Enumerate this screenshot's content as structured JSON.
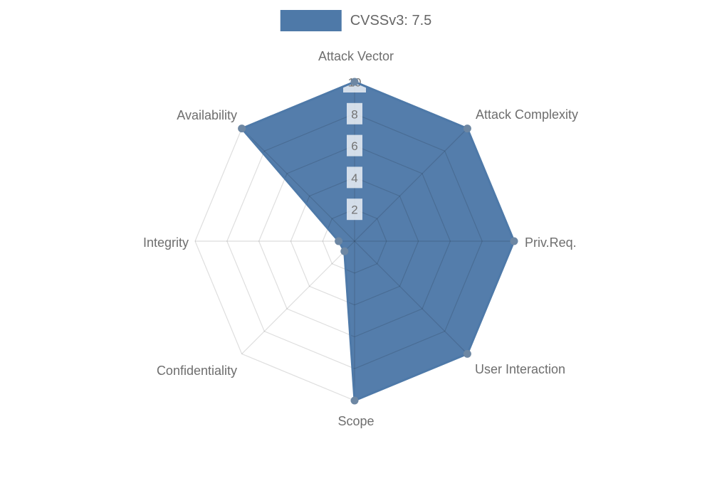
{
  "legend": {
    "label": "CVSSv3: 7.5",
    "swatch_color": "#4e79a8"
  },
  "chart_data": {
    "type": "radar",
    "categories": [
      "Attack Vector",
      "Attack Complexity",
      "Priv.Req.",
      "User Interaction",
      "Scope",
      "Confidentiality",
      "Integrity",
      "Availability"
    ],
    "series": [
      {
        "name": "CVSSv3: 7.5",
        "values": [
          10,
          10,
          10,
          10,
          10,
          0.9,
          1.0,
          10
        ]
      }
    ],
    "rlim": [
      0,
      10
    ],
    "ticks": [
      2,
      4,
      6,
      8,
      10
    ],
    "grid": true,
    "legend_position": "top",
    "colors": {
      "fill": "#4e79a8",
      "stroke": "#4e79a8",
      "marker": "#6d87a3",
      "grid_line": "rgba(0,0,0,0.13)",
      "tick_text": "#737373",
      "tick_backdrop": "rgba(255,255,255,0.75)",
      "axis_label_text": "#6e6e6e"
    }
  }
}
